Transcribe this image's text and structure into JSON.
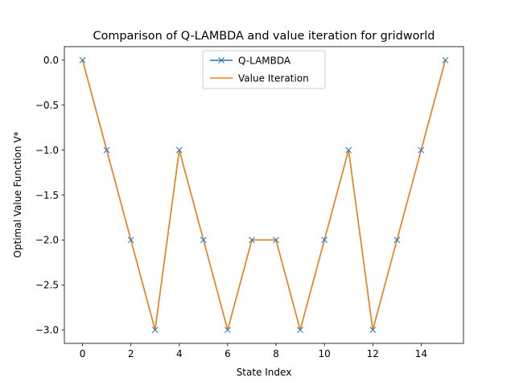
{
  "chart_data": {
    "type": "line",
    "title": "Comparison of Q-LAMBDA and value iteration for gridworld",
    "xlabel": "State Index",
    "ylabel": "Optimal Value Function V*",
    "xlim": [
      -0.75,
      15.75
    ],
    "ylim": [
      -3.15,
      0.15
    ],
    "xticks": [
      0,
      2,
      4,
      6,
      8,
      10,
      12,
      14
    ],
    "xtick_labels": [
      "0",
      "2",
      "4",
      "6",
      "8",
      "10",
      "12",
      "14"
    ],
    "yticks": [
      0.0,
      -0.5,
      -1.0,
      -1.5,
      -2.0,
      -2.5,
      -3.0
    ],
    "ytick_labels": [
      "0.0",
      "−0.5",
      "−1.0",
      "−1.5",
      "−2.0",
      "−2.5",
      "−3.0"
    ],
    "grid": false,
    "legend_position": "top-center",
    "x": [
      0,
      1,
      2,
      3,
      4,
      5,
      6,
      7,
      8,
      9,
      10,
      11,
      12,
      13,
      14,
      15
    ],
    "series": [
      {
        "name": "Q-LAMBDA",
        "color": "#1f77b4",
        "marker": "x",
        "values": [
          0,
          -1,
          -2,
          -3,
          -1,
          -2,
          -3,
          -2,
          -2,
          -3,
          -2,
          -1,
          -3,
          -2,
          -1,
          0
        ]
      },
      {
        "name": "Value Iteration",
        "color": "#ff7f0e",
        "marker": "none",
        "values": [
          0,
          -1,
          -2,
          -3,
          -1,
          -2,
          -3,
          -2,
          -2,
          -3,
          -2,
          -1,
          -3,
          -2,
          -1,
          0
        ]
      }
    ]
  }
}
